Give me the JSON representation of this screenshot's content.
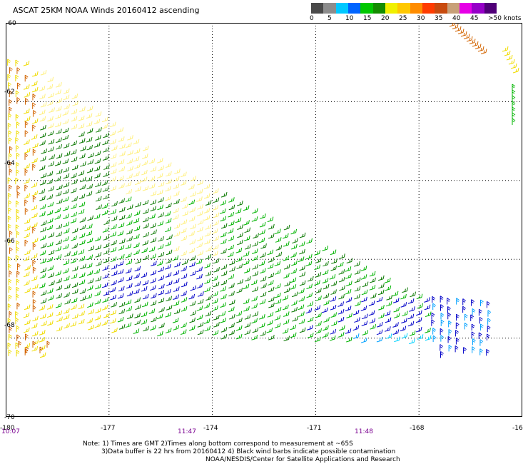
{
  "title": "ASCAT 25KM NOAA Winds 20160412 ascending",
  "legend": {
    "colors": [
      "#4a4a4a",
      "#8c8c8c",
      "#00c8ff",
      "#0064ff",
      "#00c800",
      "#148c00",
      "#f0f000",
      "#ffc800",
      "#ff8c00",
      "#ff3c00",
      "#c84b0f",
      "#c8a078",
      "#e600e6",
      "#9600c8",
      "#500078"
    ],
    "ticks": [
      "0",
      "5",
      "10",
      "15",
      "20",
      "25",
      "30",
      "35",
      "40",
      "45",
      ">50 knots"
    ]
  },
  "axes": {
    "y_labels": [
      "-60",
      "-62",
      "-64",
      "-66",
      "-68",
      "-70"
    ],
    "x_labels": [
      "-180",
      "-177",
      "-174",
      "-171",
      "-168",
      "-16"
    ],
    "time_labels": [
      "10:07",
      "11:47",
      "11:48"
    ]
  },
  "notes": [
    "Note: 1) Times are GMT 2)Times along bottom correspond to measurement at ~65S",
    "3)Data buffer is 22 hrs from 20160412 4) Black wind barbs indicate possible contamination",
    "NOAA/NESDIS/Center for Satellite Applications and Research"
  ],
  "map": {
    "lon_range": [
      -180,
      -165
    ],
    "lat_range": [
      -70,
      -60
    ],
    "grid_lons": [
      -177,
      -174,
      -171,
      -168
    ],
    "grid_lats": [
      -62,
      -64,
      -66,
      -68
    ],
    "barb_colors": {
      "yellow": "#f0dc00",
      "lightyellow": "#fff080",
      "green": "#00b400",
      "darkgreen": "#0a7800",
      "blue": "#0000c8",
      "lightblue": "#00a0ff",
      "cyan": "#00d2ff",
      "orange": "#d26400",
      "brown": "#a03c14"
    }
  }
}
